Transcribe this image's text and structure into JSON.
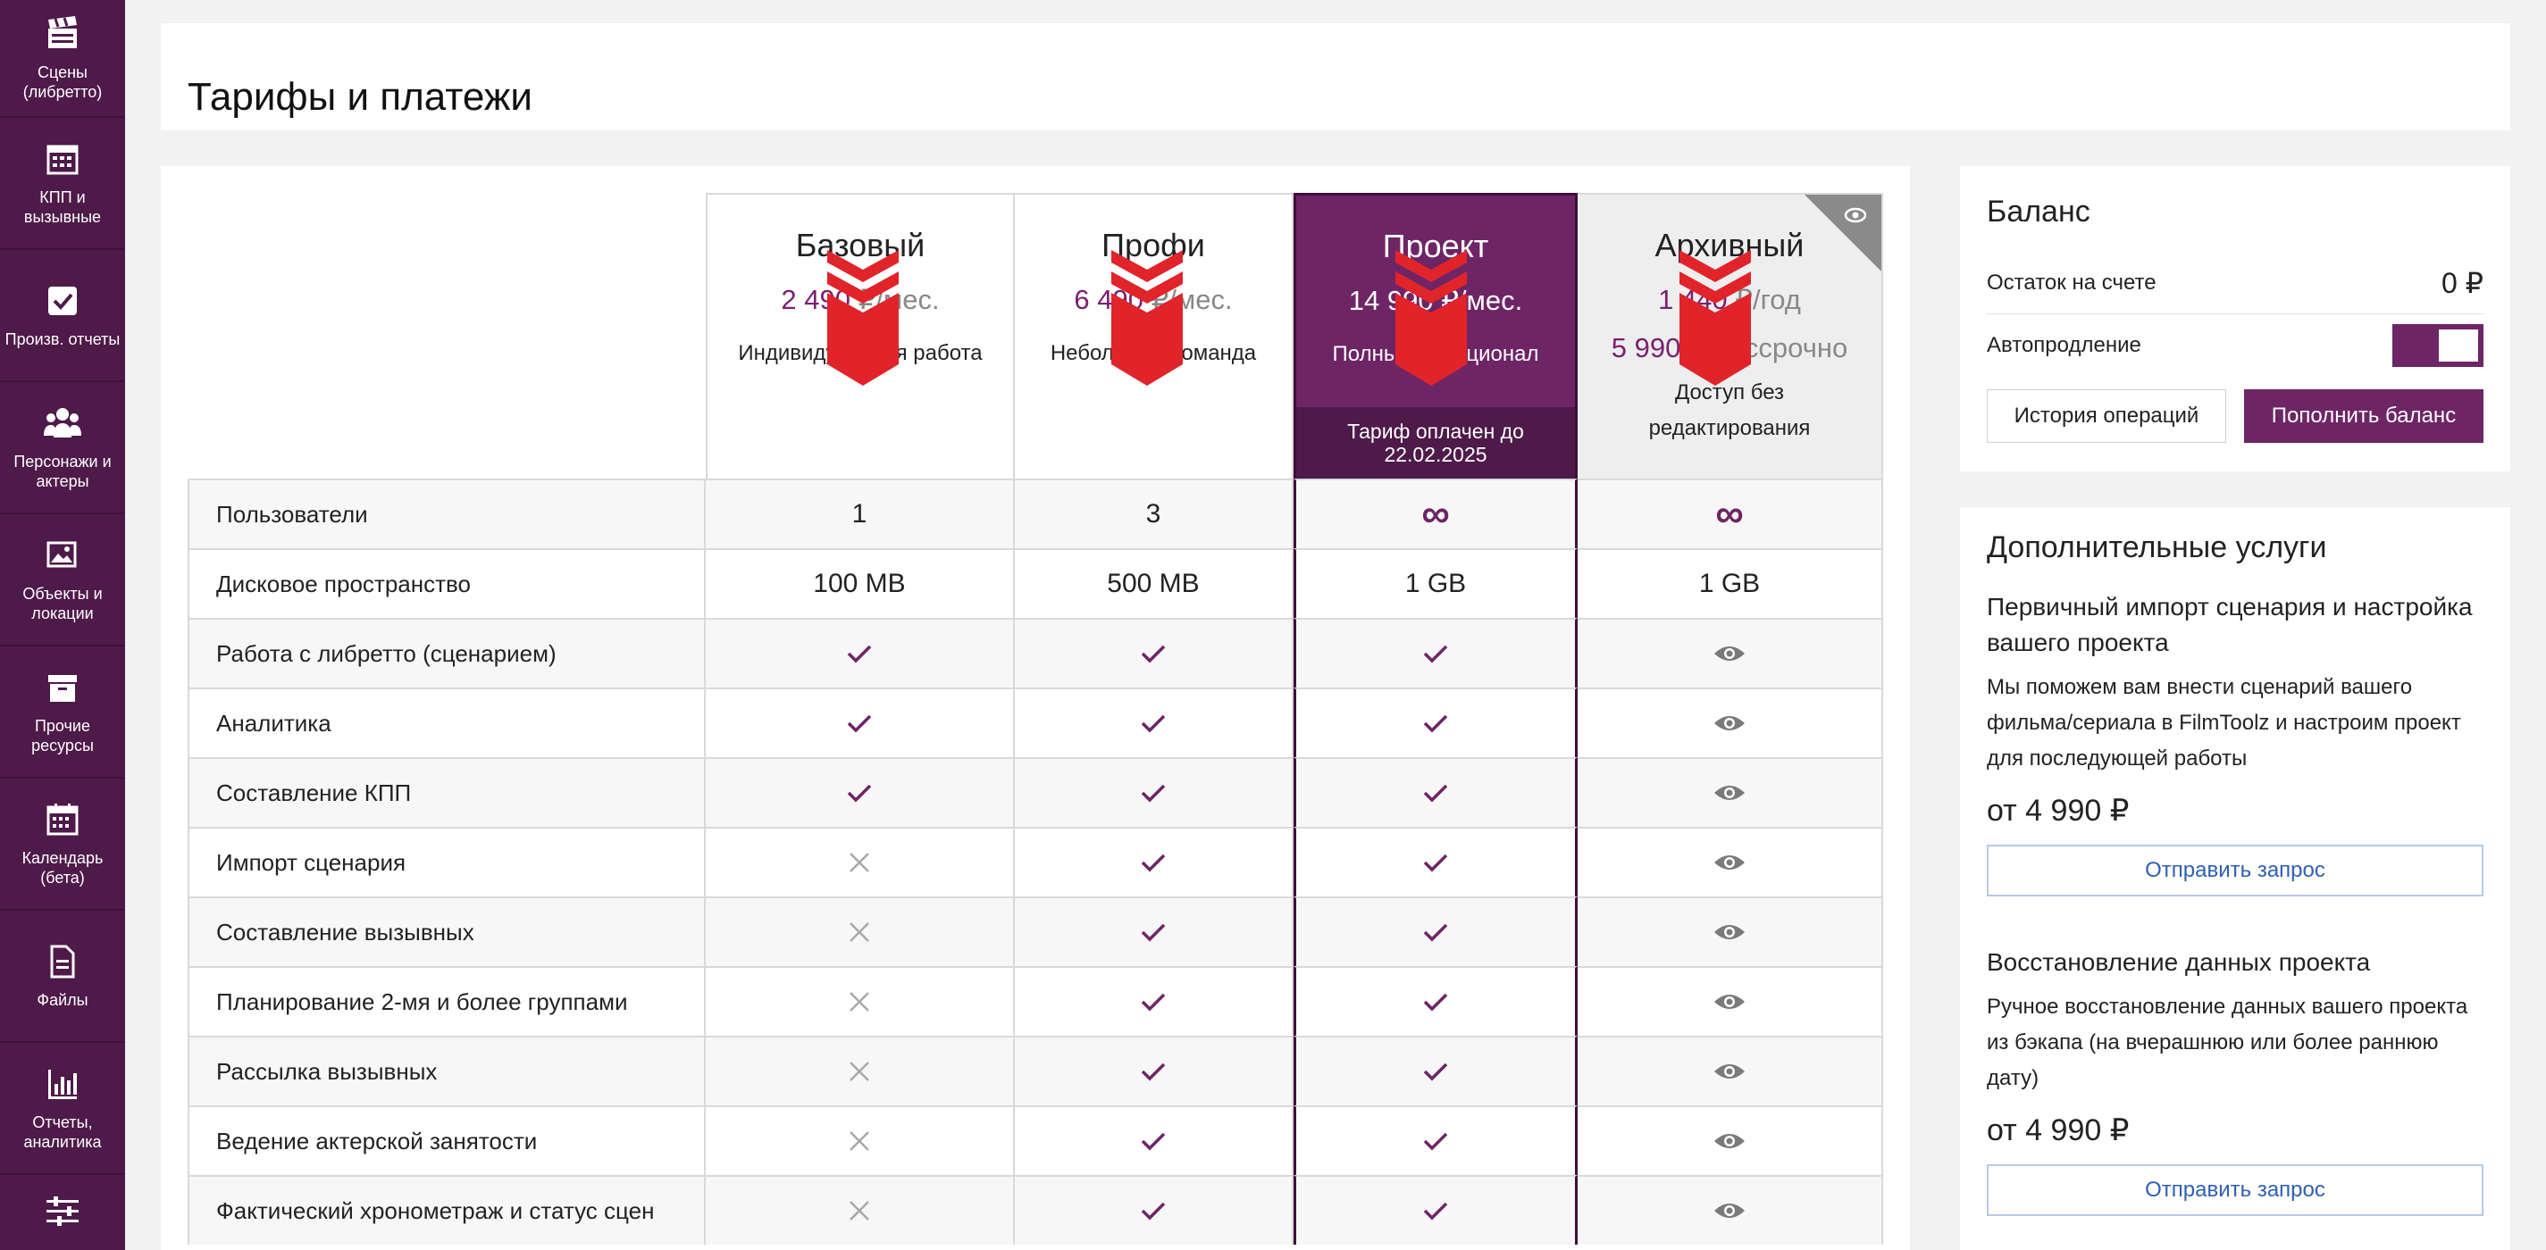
{
  "sidebar": {
    "items": [
      {
        "label": "Сцены (либретто)",
        "icon": "clapperboard-icon"
      },
      {
        "label": "КПП и вызывные",
        "icon": "calendar-grid-icon"
      },
      {
        "label": "Произв. отчеты",
        "icon": "checkbox-icon"
      },
      {
        "label": "Персонажи и актеры",
        "icon": "people-icon"
      },
      {
        "label": "Объекты и локации",
        "icon": "image-icon"
      },
      {
        "label": "Прочие ресурсы",
        "icon": "archive-box-icon"
      },
      {
        "label": "Календарь (бета)",
        "icon": "calendar-icon"
      },
      {
        "label": "Файлы",
        "icon": "file-icon"
      },
      {
        "label": "Отчеты, аналитика",
        "icon": "bar-chart-icon"
      },
      {
        "label": "",
        "icon": "sliders-icon"
      }
    ]
  },
  "page_title": "Тарифы и платежи",
  "plans": [
    {
      "name": "Базовый",
      "price": "2 490",
      "unit": "₽/мес.",
      "desc": "Индивидуальная работа"
    },
    {
      "name": "Профи",
      "price": "6 490",
      "unit": "₽/мес.",
      "desc": "Небольшая команда"
    },
    {
      "name": "Проект",
      "price": "14 990 ₽/мес.",
      "desc": "Полный функционал",
      "paid": "Тариф оплачен до 22.02.2025"
    },
    {
      "name": "Архивный",
      "price": "1 440",
      "unit": "₽/год",
      "price2": "5 990",
      "unit2": "₽/бессрочно",
      "desc": "Доступ без редактирования"
    }
  ],
  "features": [
    {
      "label": "Пользователи",
      "values": [
        "1",
        "3",
        "∞",
        "∞"
      ]
    },
    {
      "label": "Дисковое пространство",
      "values": [
        "100 MB",
        "500 MB",
        "1 GB",
        "1 GB"
      ]
    },
    {
      "label": "Работа с либретто (сценарием)",
      "values": [
        "check",
        "check",
        "check",
        "eye"
      ]
    },
    {
      "label": "Аналитика",
      "values": [
        "check",
        "check",
        "check",
        "eye"
      ]
    },
    {
      "label": "Составление КПП",
      "values": [
        "check",
        "check",
        "check",
        "eye"
      ]
    },
    {
      "label": "Импорт сценария",
      "values": [
        "cross",
        "check",
        "check",
        "eye"
      ]
    },
    {
      "label": "Составление вызывных",
      "values": [
        "cross",
        "check",
        "check",
        "eye"
      ]
    },
    {
      "label": "Планирование 2-мя и более группами",
      "values": [
        "cross",
        "check",
        "check",
        "eye"
      ]
    },
    {
      "label": "Рассылка вызывных",
      "values": [
        "cross",
        "check",
        "check",
        "eye"
      ]
    },
    {
      "label": "Ведение актерской занятости",
      "values": [
        "cross",
        "check",
        "check",
        "eye"
      ]
    },
    {
      "label": "Фактический хронометраж и статус сцен",
      "values": [
        "cross",
        "check",
        "check",
        "eye"
      ]
    }
  ],
  "balance": {
    "title": "Баланс",
    "remaining_label": "Остаток на счете",
    "remaining_value": "0 ₽",
    "autorenew_label": "Автопродление",
    "autorenew_on": true,
    "history_button": "История операций",
    "topup_button": "Пополнить баланс"
  },
  "services": {
    "title": "Дополнительные услуги",
    "items": [
      {
        "title": "Первичный импорт сценария и настройка вашего проекта",
        "desc": "Мы поможем вам внести сценарий вашего фильма/сериала в FilmToolz и настроим проект для последующей работы",
        "price": "от 4 990 ₽",
        "button": "Отправить запрос"
      },
      {
        "title": "Восстановление данных проекта",
        "desc": "Ручное восстановление данных вашего проекта из бэкапа (на вчерашнюю или более раннюю дату)",
        "price": "от 4 990 ₽",
        "button": "Отправить запрос"
      }
    ]
  },
  "colors": {
    "sidebar": "#4e1a49",
    "accent": "#6e2565",
    "arrow": "#e0242a",
    "link": "#2f5fb3"
  }
}
